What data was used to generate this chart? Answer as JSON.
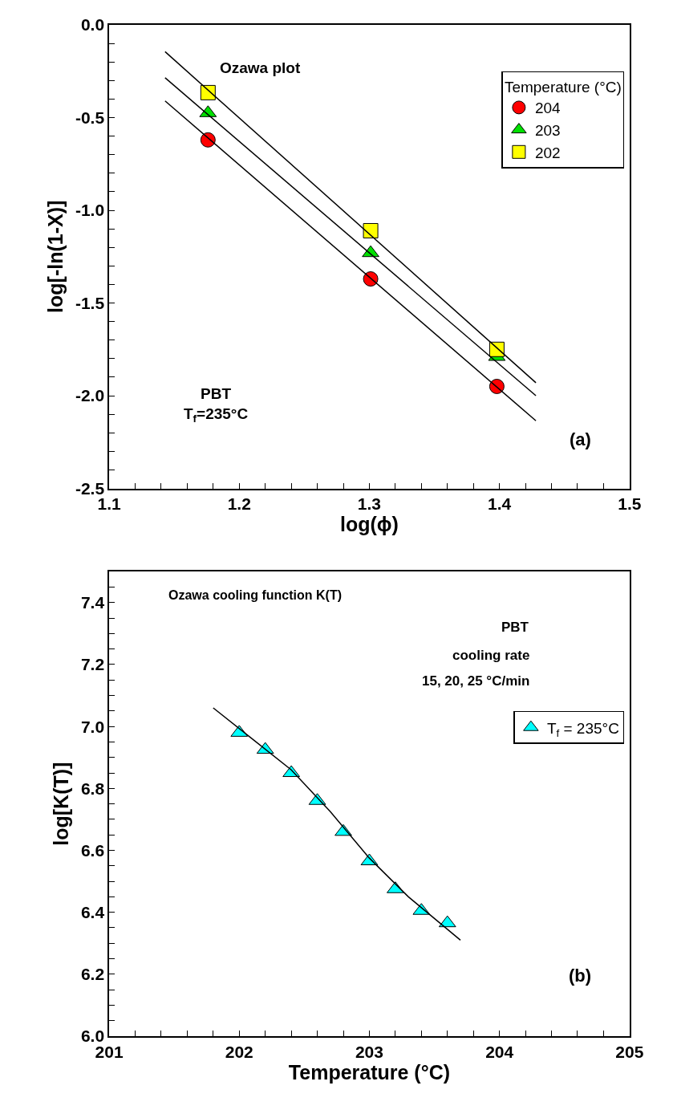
{
  "chart_data": [
    {
      "type": "scatter",
      "xlabel": "log(ϕ)",
      "ylabel": "log[-ln(1-X)]",
      "legend_title": "Temperature (°C)",
      "legend": "top right",
      "annotations": [
        "Ozawa plot",
        "PBT\nT$_{f}$=235°C",
        "(a)"
      ],
      "x": [
        1.176,
        1.301,
        1.398
      ],
      "xlim": [
        1.1,
        1.5
      ],
      "ylim": [
        -2.5,
        0.0
      ],
      "xticks": [
        1.1,
        {
          "value": 1.12,
          "label": null
        },
        {
          "value": 1.14,
          "label": null
        },
        {
          "value": 1.16,
          "label": null
        },
        {
          "value": 1.18,
          "label": null
        },
        1.2,
        {
          "value": 1.22,
          "label": null
        },
        {
          "value": 1.24,
          "label": null
        },
        {
          "value": 1.26,
          "label": null
        },
        {
          "value": 1.28,
          "label": null
        },
        1.3,
        {
          "value": 1.32,
          "label": null
        },
        {
          "value": 1.34,
          "label": null
        },
        {
          "value": 1.36,
          "label": null
        },
        {
          "value": 1.38,
          "label": null
        },
        1.4,
        {
          "value": 1.42,
          "label": null
        },
        {
          "value": 1.44,
          "label": null
        },
        {
          "value": 1.46,
          "label": null
        },
        {
          "value": 1.48,
          "label": null
        },
        1.5
      ],
      "yticks": [
        {
          "value": -2.5,
          "label": "-2.5"
        },
        {
          "value": -2.4,
          "label": null
        },
        {
          "value": -2.3,
          "label": null
        },
        {
          "value": -2.2,
          "label": null
        },
        {
          "value": -2.1,
          "label": null
        },
        {
          "value": -2.0,
          "label": "-2.0"
        },
        {
          "value": -1.9,
          "label": null
        },
        {
          "value": -1.8,
          "label": null
        },
        {
          "value": -1.7,
          "label": null
        },
        {
          "value": -1.6,
          "label": null
        },
        {
          "value": -1.5,
          "label": "-1.5"
        },
        {
          "value": -1.4,
          "label": null
        },
        {
          "value": -1.3,
          "label": null
        },
        {
          "value": -1.2,
          "label": null
        },
        {
          "value": -1.1,
          "label": null
        },
        {
          "value": -1.0,
          "label": "-1.0"
        },
        {
          "value": -0.9,
          "label": null
        },
        {
          "value": -0.8,
          "label": null
        },
        {
          "value": -0.7,
          "label": null
        },
        {
          "value": -0.6,
          "label": null
        },
        {
          "value": -0.5,
          "label": "-0.5"
        },
        {
          "value": -0.4,
          "label": null
        },
        {
          "value": -0.3,
          "label": null
        },
        {
          "value": -0.2,
          "label": null
        },
        {
          "value": -0.1,
          "label": null
        },
        {
          "value": 0.0,
          "label": "0.0"
        }
      ],
      "series": [
        {
          "name": "204",
          "color": "#ff0000",
          "marker": "circle",
          "values": [
            -0.62,
            -1.37,
            -1.95
          ]
        },
        {
          "name": "203",
          "color": "#00e000",
          "marker": "triangle",
          "values": [
            -0.475,
            -1.23,
            -1.79
          ]
        },
        {
          "name": "202",
          "color": "#ffff00",
          "marker": "square",
          "values": [
            -0.365,
            -1.11,
            -1.75
          ]
        },
        {
          "type": "line",
          "color": "#000000",
          "marker": "none",
          "line_style": "solid",
          "x": [
            1.143,
            1.428
          ],
          "values": [
            -0.41,
            -2.135
          ]
        },
        {
          "type": "line",
          "color": "#000000",
          "marker": "none",
          "line_style": "solid",
          "x": [
            1.143,
            1.428
          ],
          "values": [
            -0.285,
            -2.0
          ]
        },
        {
          "type": "line",
          "color": "#000000",
          "marker": "none",
          "line_style": "solid",
          "x": [
            1.143,
            1.428
          ],
          "values": [
            -0.144,
            -1.93
          ]
        }
      ]
    },
    {
      "type": "scatter",
      "xlabel": "Temperature (°C)",
      "ylabel": "log[K(T)]",
      "legend": "top right",
      "annotations": [
        "Ozawa cooling function K(T)",
        "PBT",
        "cooling rate",
        "15, 20, 25 °C/min",
        "(b)"
      ],
      "x": [
        202.0,
        202.2,
        202.4,
        202.6,
        202.8,
        203.0,
        203.2,
        203.4,
        203.6
      ],
      "xlim": [
        201,
        205
      ],
      "ylim": [
        6.0,
        7.5
      ],
      "xticks": [
        201,
        {
          "value": 201.2,
          "label": null
        },
        {
          "value": 201.4,
          "label": null
        },
        {
          "value": 201.6,
          "label": null
        },
        {
          "value": 201.8,
          "label": null
        },
        202,
        {
          "value": 202.2,
          "label": null
        },
        {
          "value": 202.4,
          "label": null
        },
        {
          "value": 202.6,
          "label": null
        },
        {
          "value": 202.8,
          "label": null
        },
        203,
        {
          "value": 203.2,
          "label": null
        },
        {
          "value": 203.4,
          "label": null
        },
        {
          "value": 203.6,
          "label": null
        },
        {
          "value": 203.8,
          "label": null
        },
        204,
        {
          "value": 204.2,
          "label": null
        },
        {
          "value": 204.4,
          "label": null
        },
        {
          "value": 204.6,
          "label": null
        },
        {
          "value": 204.8,
          "label": null
        },
        205
      ],
      "yticks": [
        {
          "value": 6.0,
          "label": "6.0"
        },
        {
          "value": 6.05,
          "label": null
        },
        {
          "value": 6.1,
          "label": null
        },
        {
          "value": 6.15,
          "label": null
        },
        {
          "value": 6.2,
          "label": "6.2"
        },
        {
          "value": 6.25,
          "label": null
        },
        {
          "value": 6.3,
          "label": null
        },
        {
          "value": 6.35,
          "label": null
        },
        {
          "value": 6.4,
          "label": "6.4"
        },
        {
          "value": 6.45,
          "label": null
        },
        {
          "value": 6.5,
          "label": null
        },
        {
          "value": 6.55,
          "label": null
        },
        {
          "value": 6.6,
          "label": "6.6"
        },
        {
          "value": 6.65,
          "label": null
        },
        {
          "value": 6.7,
          "label": null
        },
        {
          "value": 6.75,
          "label": null
        },
        {
          "value": 6.8,
          "label": "6.8"
        },
        {
          "value": 6.85,
          "label": null
        },
        {
          "value": 6.9,
          "label": null
        },
        {
          "value": 6.95,
          "label": null
        },
        {
          "value": 7.0,
          "label": "7.0"
        },
        {
          "value": 7.05,
          "label": null
        },
        {
          "value": 7.1,
          "label": null
        },
        {
          "value": 7.15,
          "label": null
        },
        {
          "value": 7.2,
          "label": "7.2"
        },
        {
          "value": 7.25,
          "label": null
        },
        {
          "value": 7.3,
          "label": null
        },
        {
          "value": 7.35,
          "label": null
        },
        {
          "value": 7.4,
          "label": "7.4"
        },
        {
          "value": 7.45,
          "label": null
        },
        {
          "value": 7.5,
          "label": null
        }
      ],
      "series": [
        {
          "name": "T$_{f}$ = 235°C",
          "color": "#00ffff",
          "marker": "triangle",
          "values": [
            6.98,
            6.925,
            6.85,
            6.76,
            6.66,
            6.565,
            6.475,
            6.405,
            6.365
          ]
        },
        {
          "type": "line",
          "color": "#000000",
          "marker": "none",
          "line_style": "solid",
          "x": [
            201.8,
            202.1,
            202.4,
            202.7,
            203.0,
            203.3,
            203.7
          ],
          "values": [
            7.06,
            6.96,
            6.86,
            6.725,
            6.575,
            6.45,
            6.31
          ]
        }
      ]
    }
  ]
}
